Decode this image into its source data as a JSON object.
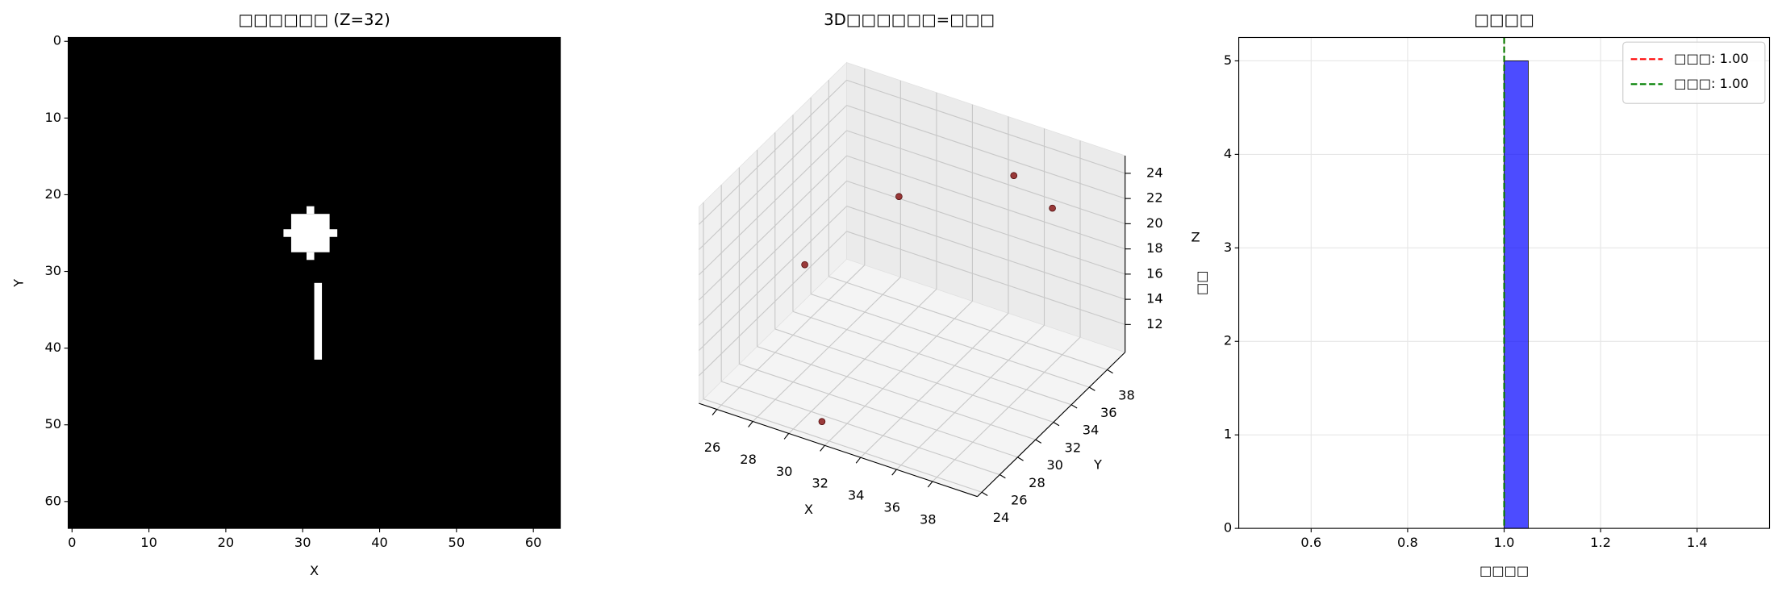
{
  "chart_data": [
    {
      "type": "image",
      "title": "□□□□□□ (Z=32)",
      "xlabel": "X",
      "ylabel": "Y",
      "xlim": [
        -0.5,
        63.5
      ],
      "ylim": [
        63.5,
        -0.5
      ],
      "xticks": [
        0,
        10,
        20,
        30,
        40,
        50,
        60
      ],
      "yticks": [
        0,
        10,
        20,
        30,
        40,
        50,
        60
      ],
      "background": "#000000",
      "color": "#ffffff",
      "rects": [
        [
          31,
          31,
          22,
          22
        ],
        [
          29,
          33,
          23,
          27
        ],
        [
          28,
          34,
          25,
          25
        ],
        [
          31,
          31,
          28,
          28
        ],
        [
          32,
          32,
          32,
          41
        ]
      ]
    },
    {
      "type": "scatter3d",
      "title": "3D□□□□□□=□□□",
      "xlabel": "X",
      "ylabel": "Y",
      "zlabel": "Z",
      "xlim": [
        25,
        40.5
      ],
      "ylim": [
        23.5,
        40
      ],
      "zlim": [
        9.8,
        25.4
      ],
      "xticks": [
        26,
        28,
        30,
        32,
        34,
        36,
        38
      ],
      "yticks": [
        24,
        26,
        28,
        30,
        32,
        34,
        36,
        38
      ],
      "zticks": [
        12,
        14,
        16,
        18,
        20,
        22,
        24
      ],
      "color": "#8b1a1a",
      "x": [
        28.1,
        31.2,
        35.5,
        37.2,
        31.3
      ],
      "y": [
        29.1,
        33.4,
        37.6,
        38.5,
        24.6
      ],
      "z": [
        18.4,
        22.3,
        23.1,
        20.7,
        10.6
      ]
    },
    {
      "type": "histogram",
      "title": "□□□□",
      "xlabel": "□□□□",
      "ylabel": "□□",
      "xlim": [
        0.45,
        1.55
      ],
      "ylim": [
        0,
        5.25
      ],
      "xticks": [
        0.6,
        0.8,
        {
          "value": 1,
          "label": "1.0"
        },
        1.2,
        1.4
      ],
      "yticks": [
        0,
        1,
        2,
        3,
        4,
        5
      ],
      "grid": true,
      "color": "#0000ff",
      "legend": "upper right",
      "bins": [
        0.5,
        0.55,
        0.6,
        0.65,
        0.7,
        0.75,
        0.8,
        0.85,
        0.9,
        0.95,
        1.0,
        1.05,
        1.1,
        1.15,
        1.2,
        1.25,
        1.3,
        1.35,
        1.4,
        1.45,
        1.5
      ],
      "counts": [
        0,
        0,
        0,
        0,
        0,
        0,
        0,
        0,
        0,
        0,
        5,
        0,
        0,
        0,
        0,
        0,
        0,
        0,
        0,
        0
      ],
      "vlines": [
        {
          "label": "□□□: 1.00",
          "value": 1,
          "color": "#ff0000"
        },
        {
          "label": "□□□: 1.00",
          "value": 1,
          "color": "#008000"
        }
      ]
    }
  ]
}
